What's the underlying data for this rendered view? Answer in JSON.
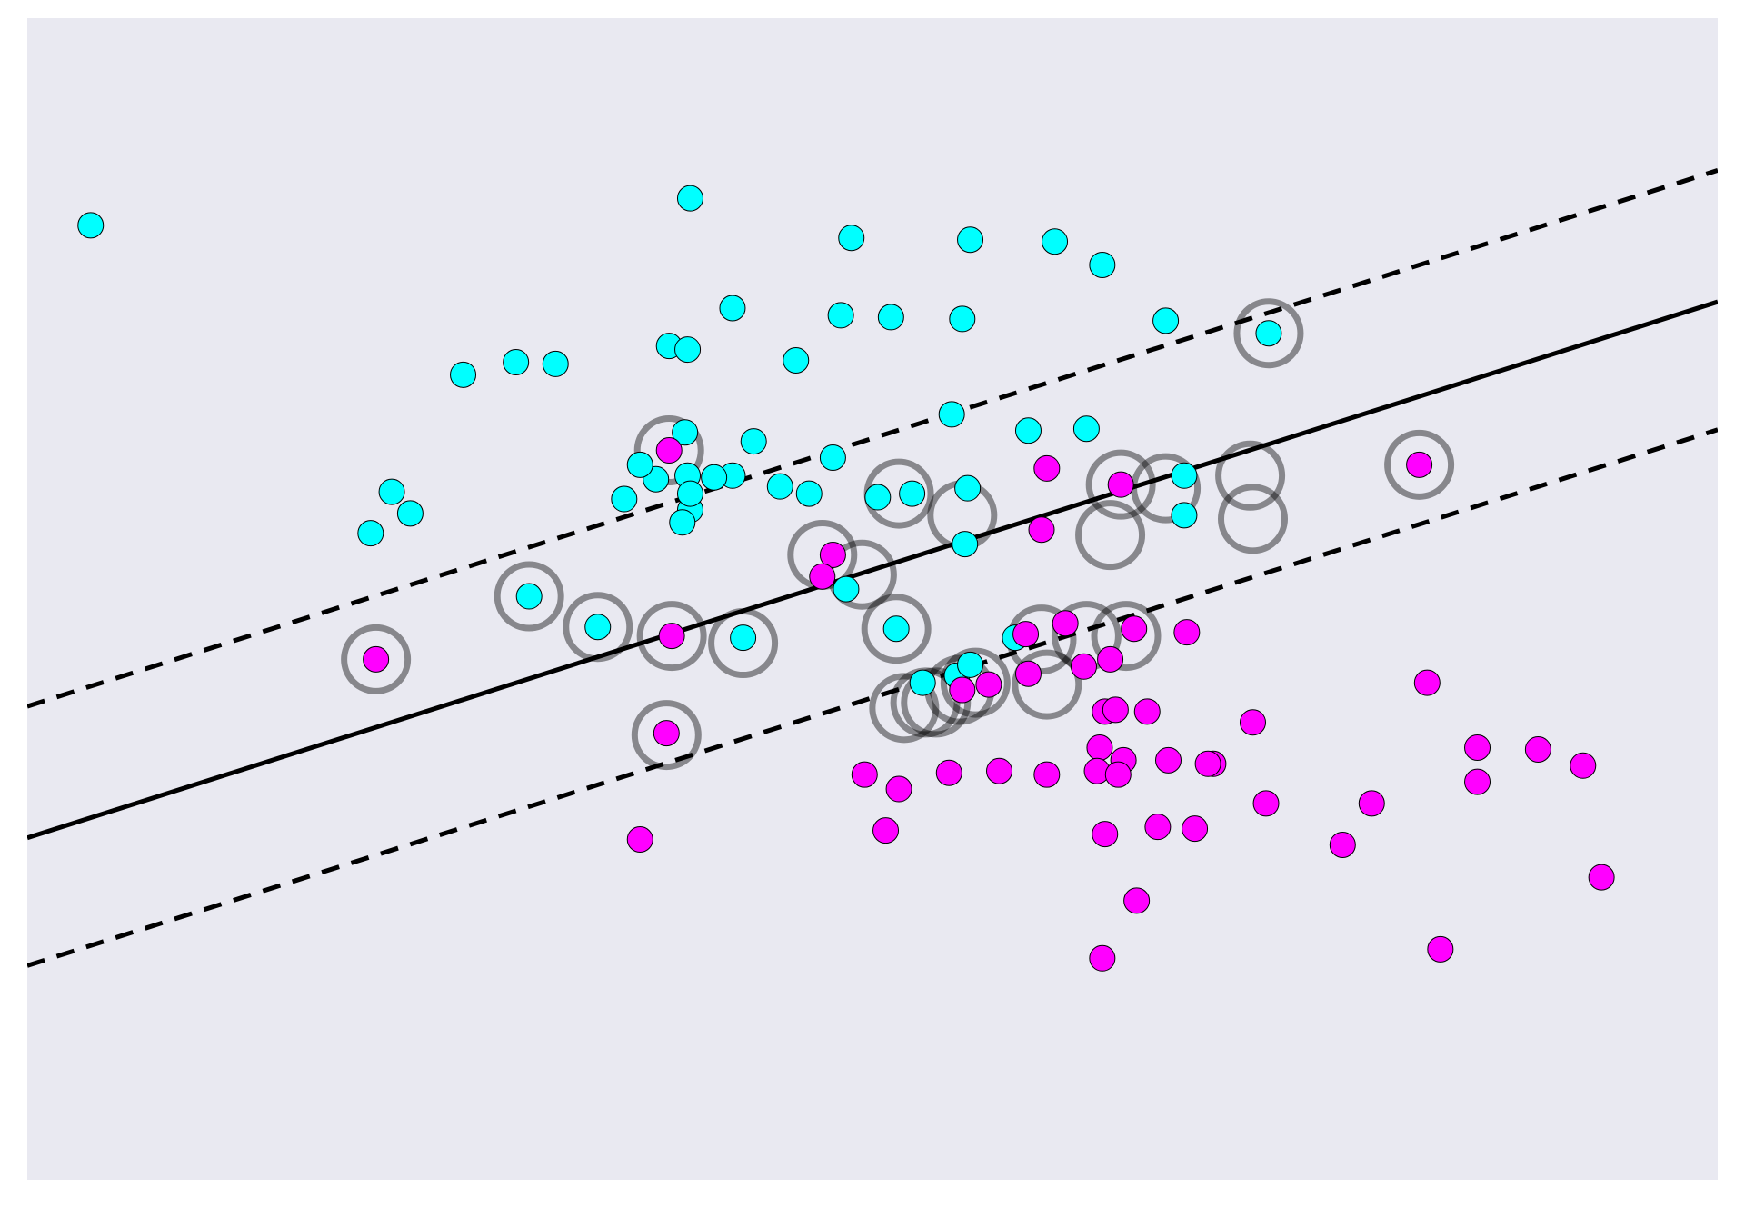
{
  "chart_data": {
    "type": "scatter",
    "title": "",
    "xlabel": "",
    "ylabel": "",
    "xlim": [
      -3.4,
      3.0
    ],
    "ylim": [
      -3.65,
      2.8
    ],
    "grid": false,
    "legend": "none",
    "colors": {
      "background": "#e9e9f1",
      "class_0": "#00ffff",
      "class_1": "#ff00ff",
      "point_edge": "#000000",
      "support_ring": "#808080",
      "line": "#000000"
    },
    "series": [
      {
        "class": 0,
        "color": "#00ffff",
        "points": [
          [
            -3.16,
            1.65
          ],
          [
            -0.89,
            1.8
          ],
          [
            -0.28,
            1.58
          ],
          [
            0.17,
            1.57
          ],
          [
            0.49,
            1.56
          ],
          [
            0.67,
            1.43
          ],
          [
            -0.73,
            1.19
          ],
          [
            -0.32,
            1.15
          ],
          [
            -0.13,
            1.14
          ],
          [
            0.14,
            1.13
          ],
          [
            0.91,
            1.12
          ],
          [
            -0.97,
            0.98
          ],
          [
            -0.9,
            0.96
          ],
          [
            -1.4,
            0.88
          ],
          [
            -1.55,
            0.89
          ],
          [
            -1.75,
            0.82
          ],
          [
            -0.49,
            0.9
          ],
          [
            0.1,
            0.6
          ],
          [
            0.39,
            0.51
          ],
          [
            0.61,
            0.52
          ],
          [
            -0.91,
            0.5
          ],
          [
            -0.65,
            0.45
          ],
          [
            -0.35,
            0.36
          ],
          [
            -0.55,
            0.2
          ],
          [
            -0.44,
            0.16
          ],
          [
            -0.18,
            0.14
          ],
          [
            -0.05,
            0.16
          ],
          [
            -1.02,
            0.24
          ],
          [
            -1.08,
            0.32
          ],
          [
            -0.73,
            0.26
          ],
          [
            -0.8,
            0.25
          ],
          [
            -0.9,
            0.26
          ],
          [
            -0.89,
            0.07
          ],
          [
            -1.95,
            0.05
          ],
          [
            -2.02,
            0.17
          ],
          [
            -2.1,
            -0.06
          ],
          [
            -1.14,
            0.13
          ],
          [
            -0.92,
            0.0
          ],
          [
            -0.89,
            0.16
          ]
        ]
      },
      {
        "class": 0,
        "color": "#00ffff",
        "points": [
          [
            1.3,
            1.05
          ],
          [
            0.16,
            0.19
          ],
          [
            0.15,
            -0.12
          ],
          [
            -1.5,
            -0.41
          ],
          [
            -1.24,
            -0.58
          ],
          [
            -0.69,
            -0.64
          ],
          [
            -0.3,
            -0.37
          ],
          [
            -0.11,
            -0.59
          ],
          [
            0.98,
            0.26
          ],
          [
            0.98,
            0.04
          ],
          [
            0.34,
            -0.64
          ],
          [
            -0.01,
            -0.89
          ],
          [
            0.12,
            -0.85
          ],
          [
            0.17,
            -0.79
          ]
        ]
      },
      {
        "class": 1,
        "color": "#ff00ff",
        "points": [
          [
            -0.97,
            0.4
          ],
          [
            0.46,
            0.3
          ],
          [
            0.74,
            0.21
          ],
          [
            1.87,
            0.32
          ],
          [
            0.44,
            -0.04
          ],
          [
            -0.35,
            -0.18
          ],
          [
            -0.39,
            -0.3
          ],
          [
            -0.96,
            -0.63
          ],
          [
            -2.08,
            -0.76
          ],
          [
            0.38,
            -0.62
          ],
          [
            0.53,
            -0.56
          ],
          [
            -0.98,
            -1.17
          ],
          [
            0.79,
            -0.59
          ],
          [
            0.14,
            -0.93
          ],
          [
            0.24,
            -0.9
          ],
          [
            0.39,
            -0.84
          ]
        ]
      },
      {
        "class": 1,
        "color": "#ff00ff",
        "points": [
          [
            0.7,
            -0.76
          ],
          [
            0.99,
            -0.61
          ],
          [
            0.6,
            -0.8
          ],
          [
            0.68,
            -1.05
          ],
          [
            0.72,
            -1.04
          ],
          [
            0.84,
            -1.05
          ],
          [
            1.24,
            -1.11
          ],
          [
            0.66,
            -1.25
          ],
          [
            0.75,
            -1.32
          ],
          [
            0.92,
            -1.32
          ],
          [
            0.65,
            -1.38
          ],
          [
            0.73,
            -1.4
          ],
          [
            1.09,
            -1.34
          ],
          [
            1.07,
            -1.34
          ],
          [
            0.46,
            -1.4
          ],
          [
            0.28,
            -1.38
          ],
          [
            0.09,
            -1.39
          ],
          [
            -0.1,
            -1.48
          ],
          [
            -0.23,
            -1.4
          ],
          [
            1.9,
            -0.89
          ],
          [
            2.09,
            -1.25
          ],
          [
            2.09,
            -1.44
          ],
          [
            2.32,
            -1.26
          ],
          [
            2.49,
            -1.35
          ],
          [
            1.29,
            -1.56
          ],
          [
            1.69,
            -1.56
          ],
          [
            1.58,
            -1.79
          ],
          [
            0.68,
            -1.73
          ],
          [
            0.88,
            -1.69
          ],
          [
            1.02,
            -1.7
          ],
          [
            -0.15,
            -1.71
          ],
          [
            -1.08,
            -1.76
          ],
          [
            2.56,
            -1.97
          ],
          [
            0.8,
            -2.1
          ],
          [
            1.95,
            -2.37
          ],
          [
            0.67,
            -2.42
          ]
        ]
      }
    ],
    "support_vectors": [
      [
        1.3,
        1.05
      ],
      [
        -0.97,
        0.4
      ],
      [
        -0.1,
        0.16
      ],
      [
        0.14,
        0.04
      ],
      [
        0.74,
        0.21
      ],
      [
        0.91,
        0.19
      ],
      [
        1.23,
        0.26
      ],
      [
        1.87,
        0.32
      ],
      [
        1.24,
        0.02
      ],
      [
        0.7,
        -0.07
      ],
      [
        -0.39,
        -0.18
      ],
      [
        -0.24,
        -0.29
      ],
      [
        -1.5,
        -0.41
      ],
      [
        -1.24,
        -0.58
      ],
      [
        -0.96,
        -0.63
      ],
      [
        -0.69,
        -0.67
      ],
      [
        -0.11,
        -0.59
      ],
      [
        0.44,
        -0.65
      ],
      [
        0.61,
        -0.63
      ],
      [
        0.76,
        -0.63
      ],
      [
        0.46,
        -0.9
      ],
      [
        0.13,
        -0.93
      ],
      [
        0.19,
        -0.89
      ],
      [
        0.0,
        -1.0
      ],
      [
        0.04,
        -1.0
      ],
      [
        -0.08,
        -1.03
      ],
      [
        -0.98,
        -1.18
      ],
      [
        -2.08,
        -0.76
      ]
    ],
    "decision_boundary": {
      "slope": 0.465,
      "intercept": -0.17
    },
    "margins": [
      {
        "slope": 0.465,
        "intercept": 0.56,
        "style": "dashed"
      },
      {
        "slope": 0.465,
        "intercept": -0.88,
        "style": "dashed"
      }
    ]
  }
}
